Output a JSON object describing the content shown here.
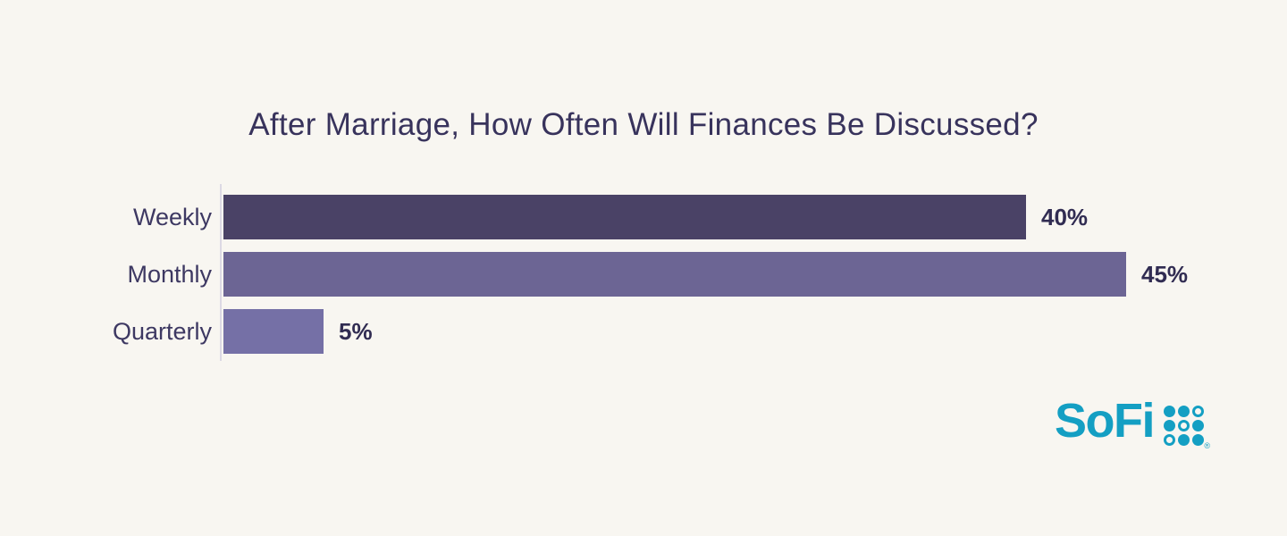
{
  "page": {
    "background": "#f8f6f1"
  },
  "chart_data": {
    "type": "bar",
    "orientation": "horizontal",
    "title": "After Marriage, How Often Will Finances Be Discussed?",
    "categories": [
      "Weekly",
      "Monthly",
      "Quarterly"
    ],
    "values": [
      40,
      45,
      5
    ],
    "value_labels": [
      "40%",
      "45%",
      "5%"
    ],
    "bar_colors": [
      "#4a4266",
      "#6c6594",
      "#7570a6"
    ],
    "xlim": [
      0,
      53
    ],
    "grid": false,
    "legend": false,
    "value_label_position": "outside-end",
    "xlabel": "",
    "ylabel": ""
  },
  "colors": {
    "title_text": "#38335c",
    "category_label": "#3d3862",
    "value_label": "#312c52",
    "axis_line": "#dcd9e4"
  },
  "branding": {
    "logo_text": "SoFi",
    "logo_color": "#149fc3",
    "trademark": "®",
    "logo_dots": [
      [
        "filled",
        "filled",
        "outline"
      ],
      [
        "filled",
        "outline",
        "filled"
      ],
      [
        "outline",
        "filled",
        "filled"
      ]
    ]
  }
}
